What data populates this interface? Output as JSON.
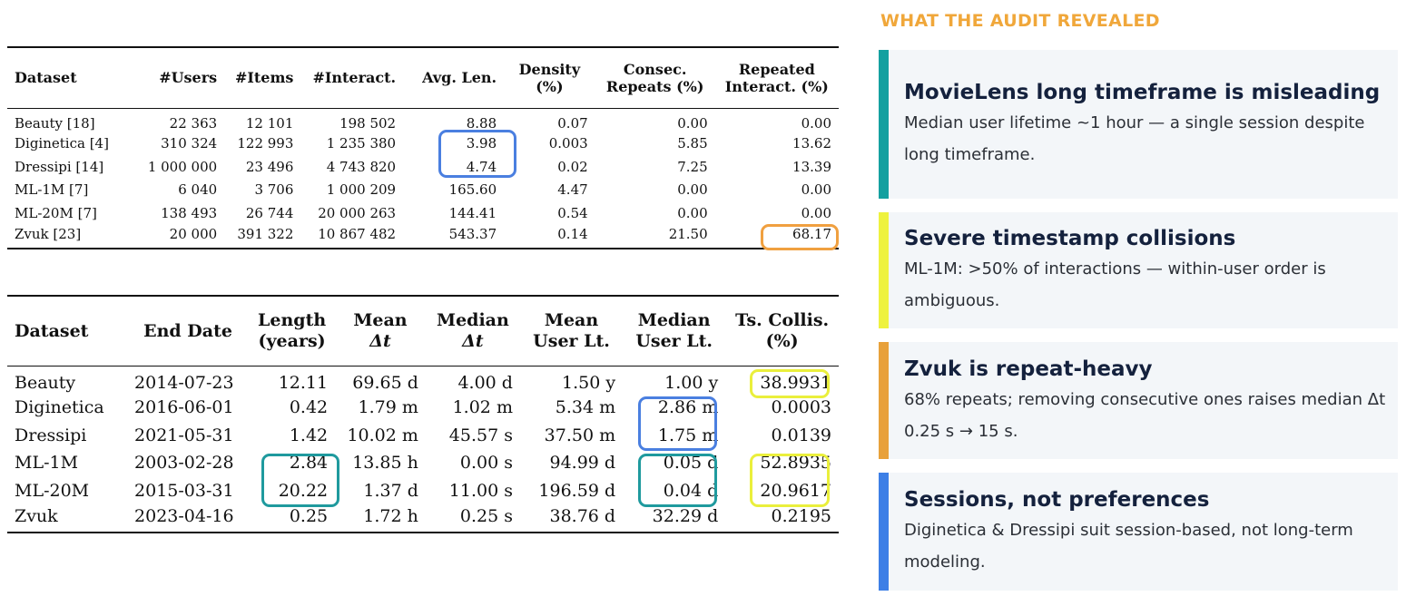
{
  "table1": {
    "headers": [
      {
        "l1": "Dataset",
        "l2": ""
      },
      {
        "l1": "#Users",
        "l2": ""
      },
      {
        "l1": "#Items",
        "l2": ""
      },
      {
        "l1": "#Interact.",
        "l2": ""
      },
      {
        "l1": "Avg. Len.",
        "l2": ""
      },
      {
        "l1": "Density",
        "l2": "(%)"
      },
      {
        "l1": "Consec.",
        "l2": "Repeats (%)"
      },
      {
        "l1": "Repeated",
        "l2": "Interact. (%)"
      }
    ],
    "rows": [
      [
        "Beauty [18]",
        "22 363",
        "12 101",
        "198 502",
        "8.88",
        "0.07",
        "0.00",
        "0.00"
      ],
      [
        "Diginetica [4]",
        "310 324",
        "122 993",
        "1 235 380",
        "3.98",
        "0.003",
        "5.85",
        "13.62"
      ],
      [
        "Dressipi [14]",
        "1 000 000",
        "23 496",
        "4 743 820",
        "4.74",
        "0.02",
        "7.25",
        "13.39"
      ],
      [
        "ML-1M [7]",
        "6 040",
        "3 706",
        "1 000 209",
        "165.60",
        "4.47",
        "0.00",
        "0.00"
      ],
      [
        "ML-20M [7]",
        "138 493",
        "26 744",
        "20 000 263",
        "144.41",
        "0.54",
        "0.00",
        "0.00"
      ],
      [
        "Zvuk [23]",
        "20 000",
        "391 322",
        "10 867 482",
        "543.37",
        "0.14",
        "21.50",
        "68.17"
      ]
    ]
  },
  "table2": {
    "headers": [
      {
        "l1": "Dataset",
        "l2": ""
      },
      {
        "l1": "End Date",
        "l2": ""
      },
      {
        "l1": "Length",
        "l2": "(years)"
      },
      {
        "l1": "Mean",
        "l2": "Δt"
      },
      {
        "l1": "Median",
        "l2": "Δt"
      },
      {
        "l1": "Mean",
        "l2": "User Lt."
      },
      {
        "l1": "Median",
        "l2": "User Lt."
      },
      {
        "l1": "Ts. Collis.",
        "l2": "(%)"
      }
    ],
    "rows": [
      [
        "Beauty",
        "2014-07-23",
        "12.11",
        "69.65 d",
        "4.00 d",
        "1.50 y",
        "1.00 y",
        "38.9931"
      ],
      [
        "Diginetica",
        "2016-06-01",
        "0.42",
        "1.79 m",
        "1.02 m",
        "5.34 m",
        "2.86 m",
        "0.0003"
      ],
      [
        "Dressipi",
        "2021-05-31",
        "1.42",
        "10.02 m",
        "45.57 s",
        "37.50 m",
        "1.75 m",
        "0.0139"
      ],
      [
        "ML-1M",
        "2003-02-28",
        "2.84",
        "13.85 h",
        "0.00 s",
        "94.99 d",
        "0.05 d",
        "52.8935"
      ],
      [
        "ML-20M",
        "2015-03-31",
        "20.22",
        "1.37 d",
        "11.00 s",
        "196.59 d",
        "0.04 d",
        "20.9617"
      ],
      [
        "Zvuk",
        "2023-04-16",
        "0.25",
        "1.72 h",
        "0.25 s",
        "38.76 d",
        "32.29 d",
        "0.2195"
      ]
    ]
  },
  "highlight_colors": {
    "blue": "#4a7fe0",
    "orange": "#f0a040",
    "teal": "#1f9a9e",
    "yellow": "#eaef3c"
  },
  "panel": {
    "title": "WHAT THE AUDIT REVEALED",
    "title_color": "#f0a73a",
    "cards": [
      {
        "title": "MovieLens long timeframe is misleading",
        "body": "Median user lifetime ~1 hour — a single session despite long timeframe.",
        "accent": "#14a0a0"
      },
      {
        "title": "Severe timestamp collisions",
        "body": "ML-1M: >50% of interactions — within-user order is ambiguous.",
        "accent": "#eef23e"
      },
      {
        "title": "Zvuk is repeat-heavy",
        "body": "68% repeats; removing consecutive ones raises median Δt 0.25 s → 15 s.",
        "accent": "#e8a13a"
      },
      {
        "title": "Sessions, not preferences",
        "body": "Diginetica & Dressipi suit session-based, not long-term modeling.",
        "accent": "#3d7fe6"
      }
    ]
  }
}
